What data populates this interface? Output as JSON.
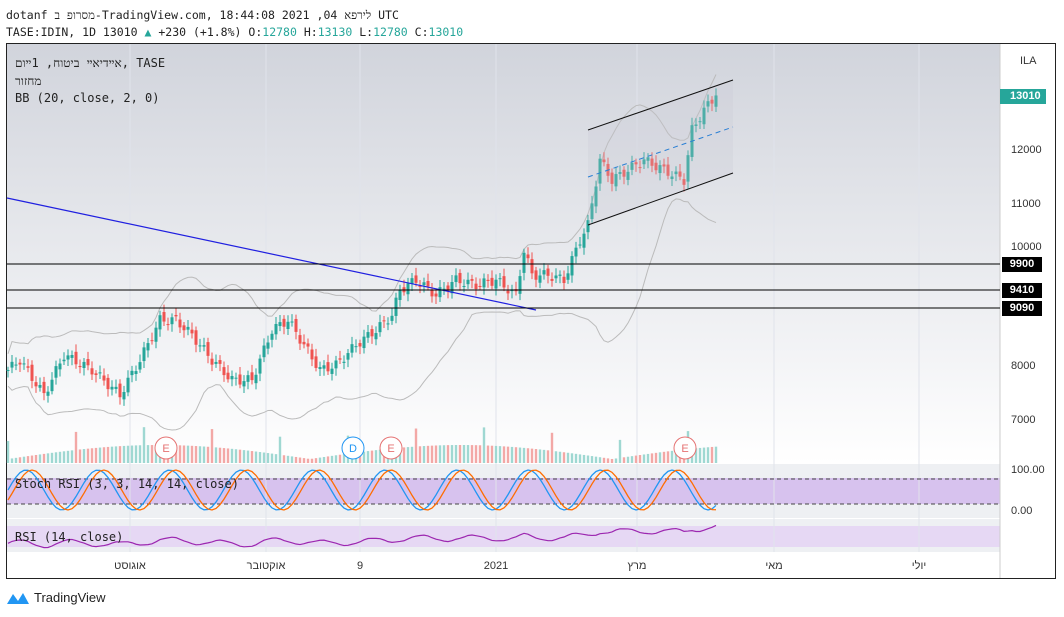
{
  "header": {
    "line1": "dotanf מסרופ ב-TradingView.com,  לירפא 04, 2021 18:44:08 UTC",
    "symbol": "TASE:IDIN, 1D 13010",
    "change": "+230 (+1.8%)",
    "o_label": "O:",
    "o": "12780",
    "h_label": "H:",
    "h": "13130",
    "l_label": "L:",
    "l": "12780",
    "c_label": "C:",
    "c": "13010"
  },
  "legend": {
    "title": "אײדיאײ ביטוח, 1ײום, TASE",
    "volume": "מחזור",
    "bb": "BB (20, close, 2, 0)",
    "stoch": "Stoch RSI (3, 3, 14, 14, close)",
    "rsi": "RSI (14, close)"
  },
  "axis": {
    "currency": "ILA",
    "last_price": "13010",
    "levels": [
      "9900",
      "9410",
      "9090"
    ],
    "ticks": [
      "12000",
      "11000",
      "10000",
      "8000",
      "7000"
    ],
    "stoch_ticks": [
      "100.00",
      "0.00"
    ]
  },
  "time_axis": [
    "אוגוסט",
    "אוקטובר",
    "9",
    "2021",
    "מרץ",
    "מאי",
    "יולי"
  ],
  "events": [
    "E",
    "D",
    "E",
    "E"
  ],
  "brand": "TradingView",
  "colors": {
    "up": "#26a69a",
    "down": "#ef5350",
    "accent": "#26a69a",
    "trend": "#2020e0"
  },
  "chart_data": {
    "type": "candlestick",
    "ylabel": "ILA",
    "ylim": [
      6500,
      13800
    ],
    "closes": [
      [
        0,
        7926
      ],
      [
        3,
        8111
      ],
      [
        9,
        7463
      ],
      [
        14,
        8204
      ],
      [
        21,
        7926
      ],
      [
        28,
        7463
      ],
      [
        33,
        8111
      ],
      [
        38,
        8852
      ],
      [
        42,
        8852
      ],
      [
        46,
        8574
      ],
      [
        51,
        8111
      ],
      [
        56,
        7741
      ],
      [
        61,
        7741
      ],
      [
        66,
        8667
      ],
      [
        70,
        8852
      ],
      [
        74,
        8389
      ],
      [
        78,
        7926
      ],
      [
        82,
        8019
      ],
      [
        87,
        8389
      ],
      [
        92,
        8667
      ],
      [
        96,
        8944
      ],
      [
        98,
        9407
      ],
      [
        102,
        9593
      ],
      [
        107,
        9315
      ],
      [
        112,
        9593
      ],
      [
        117,
        9500
      ],
      [
        122,
        9593
      ],
      [
        127,
        9315
      ],
      [
        129,
        10148
      ],
      [
        131,
        9685
      ],
      [
        135,
        9685
      ],
      [
        139,
        9593
      ],
      [
        143,
        10333
      ],
      [
        145,
        10611
      ],
      [
        148,
        11815
      ],
      [
        151,
        11444
      ],
      [
        155,
        11630
      ],
      [
        159,
        11815
      ],
      [
        164,
        11630
      ],
      [
        169,
        11444
      ],
      [
        171,
        12370
      ],
      [
        174,
        12741
      ],
      [
        177,
        13010
      ]
    ],
    "horizontal_levels": [
      9900,
      9410,
      9090
    ]
  }
}
